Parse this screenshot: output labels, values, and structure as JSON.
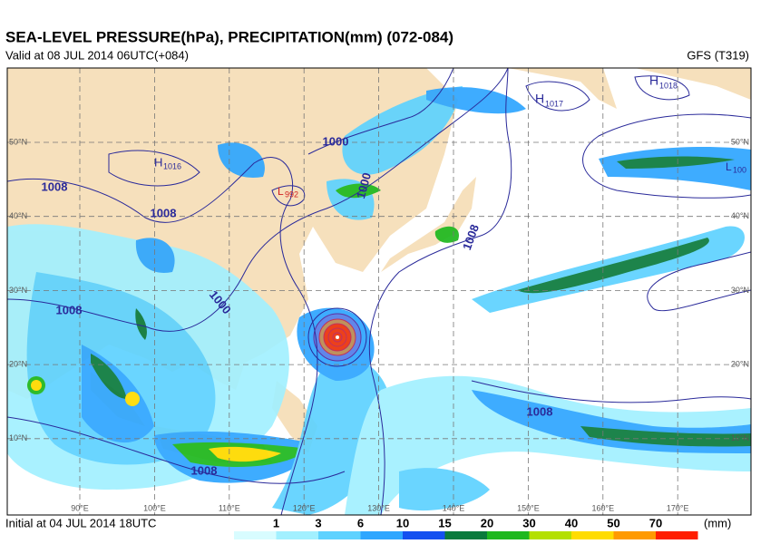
{
  "header": {
    "title": "SEA-LEVEL PRESSURE(hPa), PRECIPITATION(mm) (072-084)",
    "valid": "Valid at 08 JUL 2014 06UTC(+084)",
    "model": "GFS (T319)"
  },
  "footer": {
    "initial": "Initial at 04 JUL 2014 18UTC",
    "unit": "(mm)"
  },
  "colorbar": {
    "labels": [
      1,
      3,
      6,
      10,
      15,
      20,
      30,
      40,
      50,
      70
    ],
    "colors": [
      "#d8fcff",
      "#a2f0ff",
      "#5ed2ff",
      "#2ea6ff",
      "#1450f0",
      "#0a7a3c",
      "#1eb81e",
      "#b4e000",
      "#ffdc00",
      "#ff9a00",
      "#ff1e00"
    ]
  },
  "map": {
    "lat_labels": [
      "50°N",
      "40°N",
      "30°N",
      "20°N",
      "10°N"
    ],
    "lon_labels": [
      "90°E",
      "100°E",
      "110°E",
      "120°E",
      "130°E",
      "140°E",
      "150°E",
      "160°E",
      "170°E"
    ],
    "isobar_labels": [
      "1000",
      "1008",
      "1008",
      "1000",
      "1000",
      "1008",
      "1008",
      "1008",
      "1008"
    ],
    "centers": [
      {
        "mark": "H",
        "value": "1016"
      },
      {
        "mark": "L",
        "value": "992"
      },
      {
        "mark": "H",
        "value": "1017"
      },
      {
        "mark": "H",
        "value": "1018"
      },
      {
        "mark": "L",
        "value": "100"
      }
    ]
  }
}
